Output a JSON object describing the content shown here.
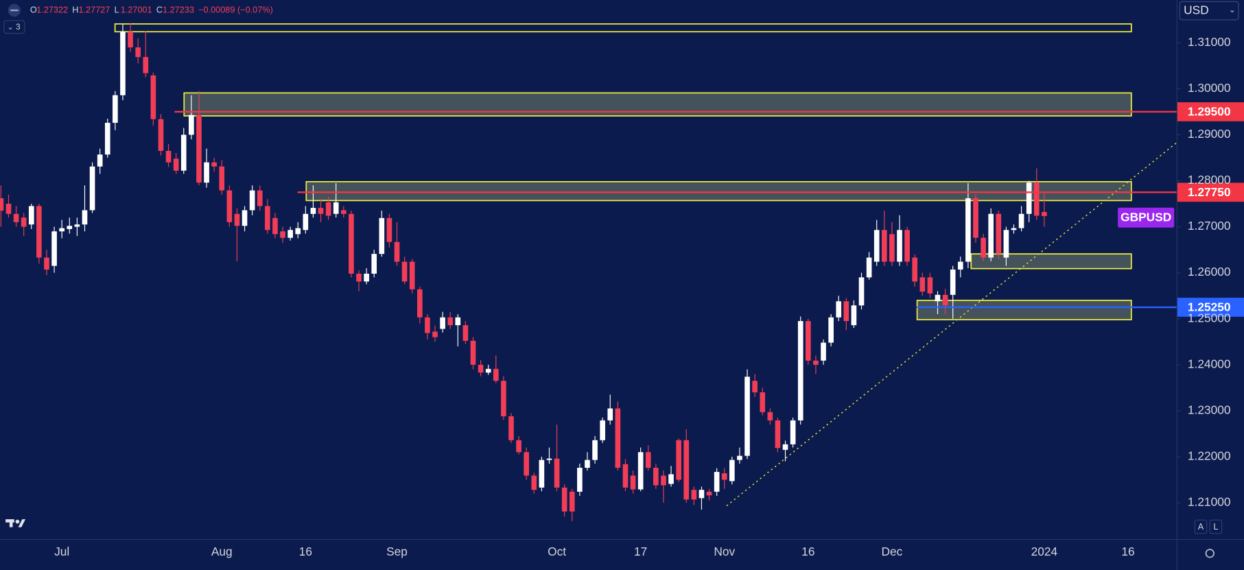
{
  "chart_data": {
    "type": "candlestick",
    "symbol": "GBPUSD",
    "symbol_color": "#9b27ef",
    "up_color": "#ffffff",
    "down_color": "#f23d57",
    "categories": [
      null,
      null,
      null,
      null,
      null,
      null,
      null,
      null,
      "Jul",
      null,
      null,
      null,
      null,
      null,
      null,
      null,
      null,
      null,
      null,
      null,
      null,
      null,
      null,
      null,
      null,
      null,
      null,
      null,
      null,
      "Aug",
      null,
      null,
      null,
      null,
      null,
      null,
      null,
      null,
      null,
      null,
      "16",
      null,
      null,
      null,
      null,
      null,
      null,
      null,
      null,
      null,
      null,
      null,
      "Sep",
      null,
      null,
      null,
      null,
      null,
      null,
      null,
      null,
      null,
      null,
      null,
      null,
      null,
      null,
      null,
      null,
      null,
      null,
      null,
      null,
      "Oct",
      null,
      null,
      null,
      null,
      null,
      null,
      null,
      null,
      null,
      null,
      "17",
      null,
      null,
      null,
      null,
      null,
      null,
      null,
      null,
      null,
      null,
      "Nov",
      null,
      null,
      null,
      null,
      null,
      null,
      null,
      null,
      null,
      null,
      "16",
      null,
      null,
      null,
      null,
      null,
      null,
      null,
      null,
      null,
      null,
      "Dec",
      null,
      null,
      null,
      null,
      null,
      null,
      null,
      null,
      null,
      null,
      null,
      null,
      null,
      null,
      null,
      null,
      null,
      null,
      null,
      "2024",
      null,
      null,
      null,
      null,
      null,
      null,
      null,
      null,
      null,
      null,
      "16",
      null,
      null,
      null,
      null,
      null,
      null
    ],
    "open": [
      1.2762,
      1.275,
      1.2728,
      1.272,
      1.2705,
      1.2745,
      1.2633,
      1.2615,
      1.269,
      1.2695,
      1.27,
      1.2705,
      1.2736,
      1.2831,
      1.2857,
      1.2926,
      1.2986,
      1.3124,
      1.309,
      1.3069,
      1.3029,
      1.2934,
      1.2865,
      1.2848,
      1.2822,
      1.29,
      1.2943,
      1.2796,
      1.284,
      1.2831,
      1.2779,
      1.2728,
      1.2702,
      1.2736,
      1.2779,
      1.2745,
      1.2719,
      1.269,
      1.2676,
      1.2684,
      1.2693,
      1.2728,
      1.2741,
      1.2753,
      1.2728,
      1.2736,
      1.2728,
      1.2598,
      1.2581,
      1.2598,
      1.2641,
      1.2719,
      1.2667,
      1.2624,
      1.2624,
      1.2564,
      1.2503,
      1.2472,
      1.2478,
      1.2503,
      1.2486,
      1.2486,
      1.2452,
      1.24,
      1.2383,
      1.2391,
      1.2365,
      1.2288,
      1.2236,
      1.221,
      1.2159,
      1.2133,
      1.2193,
      1.2196,
      1.2133,
      1.2124,
      1.2124,
      1.2176,
      1.2193,
      1.2236,
      1.2279,
      1.2305,
      1.2184,
      1.2159,
      1.2129,
      1.221,
      1.2176,
      1.2159,
      1.2141,
      1.2236,
      1.2236,
      1.2128,
      1.211,
      1.2124,
      1.2124,
      1.2164,
      1.2147,
      1.2193,
      1.2202,
      1.2365,
      1.234,
      1.2297,
      1.2279,
      1.2215,
      1.2227,
      1.2279,
      1.2495,
      1.2409,
      1.2409,
      1.2448,
      1.2503,
      1.2538,
      1.2486,
      1.2529,
      1.259,
      1.2624,
      1.2693,
      1.2684,
      1.2624,
      1.2693,
      1.2633,
      1.259,
      1.259,
      1.2538,
      1.2552,
      1.2552,
      1.2607,
      1.2624,
      1.2762,
      1.2676,
      1.2633,
      1.2728,
      1.2633,
      1.2693,
      1.2697,
      1.2728,
      1.2796,
      1.27322,
      null,
      null,
      null,
      null,
      null,
      null,
      null,
      null,
      null,
      null,
      null,
      null,
      null,
      null,
      null,
      null,
      null
    ],
    "high": [
      1.279,
      1.277,
      1.2745,
      1.273,
      1.275,
      1.275,
      1.265,
      1.27,
      1.2715,
      1.272,
      1.272,
      1.279,
      1.284,
      1.287,
      1.2935,
      1.2995,
      1.314,
      1.3143,
      1.311,
      1.3125,
      1.3035,
      1.2945,
      1.288,
      1.286,
      1.2915,
      1.2986,
      1.2995,
      1.287,
      1.285,
      1.2845,
      1.279,
      1.274,
      1.2745,
      1.279,
      1.279,
      1.276,
      1.273,
      1.27,
      1.27,
      1.271,
      1.2745,
      1.279,
      1.276,
      1.2765,
      1.2795,
      1.2745,
      1.2735,
      1.2605,
      1.261,
      1.265,
      1.2735,
      1.2728,
      1.271,
      1.2635,
      1.263,
      1.257,
      1.251,
      1.2485,
      1.2515,
      1.2515,
      1.251,
      1.2495,
      1.246,
      1.241,
      1.24,
      1.242,
      1.2375,
      1.2295,
      1.2245,
      1.222,
      1.2165,
      1.22,
      1.222,
      1.227,
      1.214,
      1.213,
      1.2185,
      1.221,
      1.2245,
      1.2285,
      1.2335,
      1.232,
      1.2195,
      1.217,
      1.222,
      1.2225,
      1.2185,
      1.217,
      1.218,
      1.224,
      1.226,
      1.2135,
      1.2135,
      1.213,
      1.2175,
      1.2175,
      1.22,
      1.222,
      1.239,
      1.238,
      1.235,
      1.2305,
      1.2285,
      1.2235,
      1.2285,
      1.2505,
      1.25,
      1.242,
      1.2455,
      1.251,
      1.255,
      1.2545,
      1.254,
      1.26,
      1.2645,
      1.2715,
      1.2735,
      1.271,
      1.2725,
      1.27,
      1.264,
      1.26,
      1.26,
      1.256,
      1.2565,
      1.2615,
      1.2635,
      1.2795,
      1.277,
      1.2685,
      1.274,
      1.2735,
      1.27,
      1.2705,
      1.2745,
      1.28,
      1.2827,
      1.27727,
      null,
      null,
      null,
      null,
      null,
      null,
      null,
      null,
      null,
      null,
      null,
      null,
      null,
      null,
      null,
      null,
      null
    ],
    "low": [
      1.27,
      1.272,
      1.27,
      1.268,
      1.2695,
      1.262,
      1.2595,
      1.26,
      1.2675,
      1.2685,
      1.268,
      1.269,
      1.273,
      1.2815,
      1.285,
      1.291,
      1.2975,
      1.308,
      1.3055,
      1.3025,
      1.292,
      1.2855,
      1.283,
      1.2815,
      1.2815,
      1.289,
      1.279,
      1.2785,
      1.282,
      1.277,
      1.27,
      1.2625,
      1.269,
      1.2725,
      1.2735,
      1.2685,
      1.2675,
      1.2665,
      1.267,
      1.2675,
      1.2685,
      1.272,
      1.271,
      1.2715,
      1.272,
      1.272,
      1.259,
      1.256,
      1.2575,
      1.259,
      1.2635,
      1.2655,
      1.2615,
      1.2575,
      1.2555,
      1.249,
      1.2455,
      1.245,
      1.247,
      1.2478,
      1.244,
      1.2445,
      1.239,
      1.2375,
      1.2378,
      1.236,
      1.228,
      1.223,
      1.2205,
      1.215,
      1.212,
      1.2125,
      1.2185,
      1.2125,
      1.207,
      1.206,
      1.2115,
      1.217,
      1.2185,
      1.223,
      1.227,
      1.217,
      1.2125,
      1.212,
      1.2125,
      1.217,
      1.213,
      1.21,
      1.2135,
      1.2145,
      1.21,
      1.2095,
      1.2085,
      1.2105,
      1.2115,
      1.213,
      1.214,
      1.2185,
      1.2195,
      1.233,
      1.229,
      1.227,
      1.221,
      1.219,
      1.222,
      1.227,
      1.24,
      1.238,
      1.24,
      1.244,
      1.2495,
      1.2475,
      1.248,
      1.252,
      1.2585,
      1.2615,
      1.2615,
      1.2615,
      1.2615,
      1.2615,
      1.257,
      1.255,
      1.2545,
      1.251,
      1.251,
      1.25,
      1.259,
      1.261,
      1.2665,
      1.2625,
      1.2625,
      1.263,
      1.2615,
      1.2685,
      1.269,
      1.271,
      1.2715,
      1.27001,
      null,
      null,
      null,
      null,
      null,
      null,
      null,
      null,
      null,
      null,
      null,
      null,
      null,
      null,
      null,
      null,
      null
    ],
    "close": [
      1.2735,
      1.2728,
      1.271,
      1.27,
      1.2745,
      1.2633,
      1.2607,
      1.269,
      1.2697,
      1.2702,
      1.2705,
      1.2736,
      1.2831,
      1.2857,
      1.2926,
      1.2986,
      1.3124,
      1.309,
      1.3069,
      1.3034,
      1.2934,
      1.2865,
      1.284,
      1.2822,
      1.29,
      1.2943,
      1.2796,
      1.284,
      1.2831,
      1.2779,
      1.271,
      1.2702,
      1.2736,
      1.2779,
      1.2745,
      1.2693,
      1.2684,
      1.2676,
      1.2693,
      1.2697,
      1.2728,
      1.2741,
      1.2728,
      1.2724,
      1.2753,
      1.2728,
      1.2598,
      1.2581,
      1.2598,
      1.2641,
      1.2719,
      1.2667,
      1.2624,
      1.2581,
      1.2564,
      1.2503,
      1.2469,
      1.246,
      1.2503,
      1.2486,
      1.2503,
      1.2452,
      1.24,
      1.2383,
      1.2391,
      1.2365,
      1.2288,
      1.2236,
      1.221,
      1.2159,
      1.2128,
      1.2193,
      1.2196,
      1.2133,
      1.2081,
      1.2081,
      1.2176,
      1.2193,
      1.2236,
      1.2279,
      1.2305,
      1.2176,
      1.2133,
      1.2129,
      1.221,
      1.2176,
      1.2138,
      1.2138,
      1.2162,
      1.215,
      1.2107,
      1.2107,
      1.2128,
      1.2116,
      1.2167,
      1.215,
      1.2193,
      1.2202,
      1.2374,
      1.234,
      1.2297,
      1.2279,
      1.2219,
      1.2227,
      1.2279,
      1.2495,
      1.2409,
      1.24,
      1.2448,
      1.2503,
      1.2538,
      1.2495,
      1.2529,
      1.259,
      1.2633,
      1.2693,
      1.2624,
      1.2624,
      1.2693,
      1.2624,
      1.2581,
      1.2559,
      1.2555,
      1.2552,
      1.2529,
      1.2607,
      1.2624,
      1.2762,
      1.2676,
      1.2633,
      1.2728,
      1.2641,
      1.2693,
      1.2697,
      1.2728,
      1.2796,
      1.2724,
      1.27233,
      null,
      null,
      null,
      null,
      null,
      null,
      null,
      null,
      null,
      null,
      null,
      null,
      null,
      null,
      null,
      null,
      null
    ],
    "ylim": [
      1.2021,
      1.3193
    ],
    "yticks": [
      {
        "value": 1.21,
        "label": "1.21000"
      },
      {
        "value": 1.22,
        "label": "1.22000"
      },
      {
        "value": 1.23,
        "label": "1.23000"
      },
      {
        "value": 1.24,
        "label": "1.24000"
      },
      {
        "value": 1.25,
        "label": "1.25000"
      },
      {
        "value": 1.26,
        "label": "1.26000"
      },
      {
        "value": 1.27,
        "label": "1.27000"
      },
      {
        "value": 1.28,
        "label": "1.28000"
      },
      {
        "value": 1.29,
        "label": "1.29000"
      },
      {
        "value": 1.3,
        "label": "1.30000"
      },
      {
        "value": 1.31,
        "label": "1.31000"
      }
    ],
    "grid": false,
    "zones": [
      {
        "low": 1.3124,
        "high": 1.3141,
        "filled": false
      },
      {
        "low": 1.2941,
        "high": 1.2991,
        "filled": true
      },
      {
        "low": 1.2757,
        "high": 1.2798,
        "filled": true
      },
      {
        "low": 1.2609,
        "high": 1.2641,
        "filled": true
      },
      {
        "low": 1.2498,
        "high": 1.254,
        "filled": true
      }
    ],
    "levels": [
      {
        "value": 1.295,
        "label": "1.29500",
        "color": "#f23645"
      },
      {
        "value": 1.2775,
        "label": "1.27750",
        "color": "#f23645"
      },
      {
        "value": 1.2525,
        "label": "1.25250",
        "color": "#2962ff"
      }
    ]
  },
  "header": {
    "items": [
      [
        "O",
        "1.27322"
      ],
      [
        "H",
        "1.27727"
      ],
      [
        "L",
        "1.27001"
      ],
      [
        "C",
        "1.27233"
      ]
    ],
    "change": "−0.00089 (−0.07%)",
    "indicators": "3",
    "currency": "USD",
    "buttons": [
      "A",
      "L"
    ]
  }
}
